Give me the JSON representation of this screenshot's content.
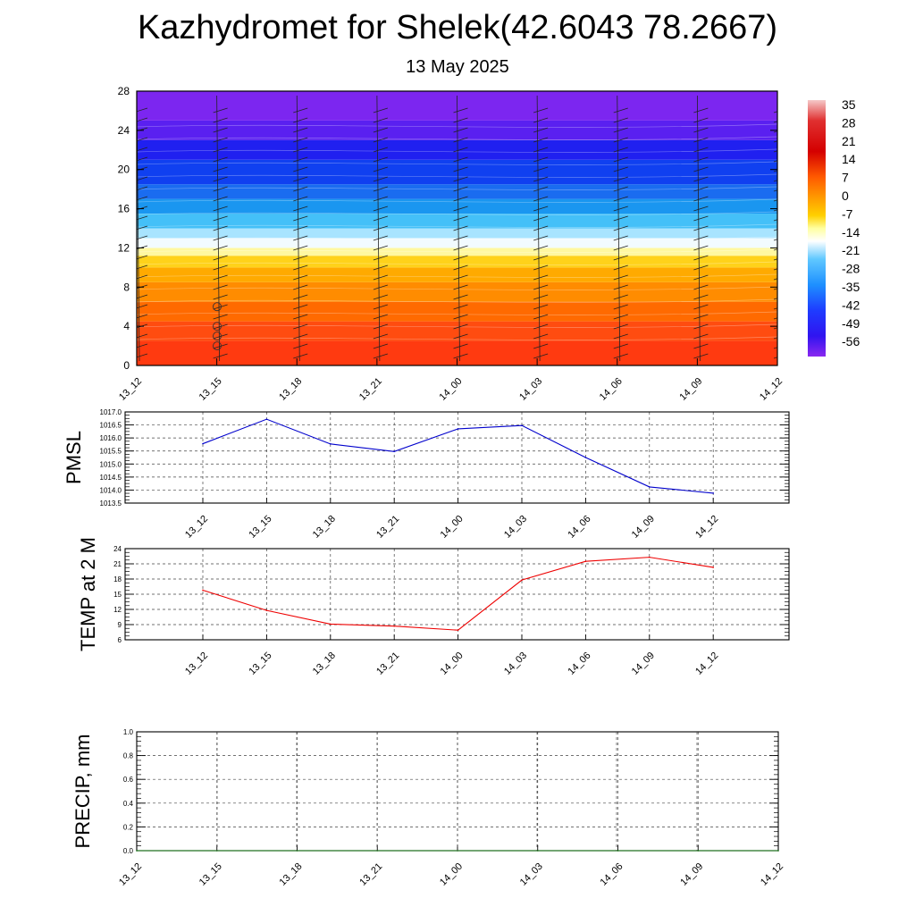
{
  "header": {
    "title": "Kazhydromet for Shelek(42.6043 78.2667)",
    "subtitle": "13 May 2025"
  },
  "chart_data": [
    {
      "type": "heatmap",
      "name": "temperature-profile",
      "x_ticks": [
        "13_12",
        "13_15",
        "13_18",
        "13_21",
        "14_00",
        "14_03",
        "14_06",
        "14_09",
        "14_12"
      ],
      "y_ticks": [
        0,
        4,
        8,
        12,
        16,
        20,
        24,
        28
      ],
      "ylim": [
        0,
        28
      ],
      "colorbar": {
        "labels": [
          "35",
          "28",
          "21",
          "14",
          "7",
          "0",
          "-7",
          "-14",
          "-21",
          "-28",
          "-35",
          "-42",
          "-49",
          "-56"
        ],
        "stops": [
          {
            "offset": 0.0,
            "color": "#f5c8c8"
          },
          {
            "offset": 0.08,
            "color": "#e03030"
          },
          {
            "offset": 0.2,
            "color": "#d40000"
          },
          {
            "offset": 0.3,
            "color": "#ff5a00"
          },
          {
            "offset": 0.38,
            "color": "#ff9a00"
          },
          {
            "offset": 0.45,
            "color": "#ffd000"
          },
          {
            "offset": 0.5,
            "color": "#ffffa0"
          },
          {
            "offset": 0.55,
            "color": "#ffffff"
          },
          {
            "offset": 0.62,
            "color": "#60c8ff"
          },
          {
            "offset": 0.72,
            "color": "#1e90ff"
          },
          {
            "offset": 0.82,
            "color": "#1e3cff"
          },
          {
            "offset": 0.92,
            "color": "#3014f0"
          },
          {
            "offset": 1.0,
            "color": "#8a28f0"
          }
        ]
      },
      "field_bands": [
        {
          "from": 0,
          "to": 2.5,
          "color": "#ff3a10"
        },
        {
          "from": 2.5,
          "to": 4.5,
          "color": "#ff4c10"
        },
        {
          "from": 4.5,
          "to": 6.5,
          "color": "#ff6a00"
        },
        {
          "from": 6.5,
          "to": 8.5,
          "color": "#ff8c00"
        },
        {
          "from": 8.5,
          "to": 10,
          "color": "#ffaa00"
        },
        {
          "from": 10,
          "to": 11.2,
          "color": "#ffd21a"
        },
        {
          "from": 11.2,
          "to": 12,
          "color": "#fff8a0"
        },
        {
          "from": 12,
          "to": 13,
          "color": "#f2fbff"
        },
        {
          "from": 13,
          "to": 14,
          "color": "#a8e4ff"
        },
        {
          "from": 14,
          "to": 15.5,
          "color": "#44c0f8"
        },
        {
          "from": 15.5,
          "to": 17,
          "color": "#1a96f0"
        },
        {
          "from": 17,
          "to": 18.5,
          "color": "#1a6cf0"
        },
        {
          "from": 18.5,
          "to": 21,
          "color": "#1040f0"
        },
        {
          "from": 21,
          "to": 23,
          "color": "#2020f0"
        },
        {
          "from": 23,
          "to": 25,
          "color": "#5a20f0"
        },
        {
          "from": 25,
          "to": 28,
          "color": "#7c26f0"
        }
      ]
    },
    {
      "type": "line",
      "name": "pmsl",
      "ylabel": "PMSL",
      "x": [
        "13_12",
        "13_15",
        "13_18",
        "13_21",
        "14_00",
        "14_03",
        "14_06",
        "14_09",
        "14_12"
      ],
      "y_ticks": [
        "1017.0",
        "1016.5",
        "1016.0",
        "1015.5",
        "1015.0",
        "1014.5",
        "1014.0",
        "1013.5"
      ],
      "ylim": [
        1013.5,
        1017.0
      ],
      "values": [
        1015.78,
        1016.72,
        1015.77,
        1015.48,
        1016.35,
        1016.48,
        1015.25,
        1014.12,
        1013.88
      ],
      "color": "#0000cc"
    },
    {
      "type": "line",
      "name": "temp-2m",
      "ylabel": "TEMP at 2 M",
      "x": [
        "13_12",
        "13_15",
        "13_18",
        "13_21",
        "14_00",
        "14_03",
        "14_06",
        "14_09",
        "14_12"
      ],
      "y_ticks": [
        "24",
        "21",
        "18",
        "15",
        "12",
        "9",
        "6"
      ],
      "ylim": [
        6,
        24
      ],
      "values": [
        15.8,
        11.8,
        9.1,
        8.7,
        7.9,
        17.8,
        21.5,
        22.3,
        20.3
      ],
      "color": "#ee0000"
    },
    {
      "type": "line",
      "name": "precip",
      "ylabel": "PRECIP, mm",
      "x_ticks": [
        "13_12",
        "13_15",
        "13_18",
        "13_21",
        "14_00",
        "14_03",
        "14_06",
        "14_09",
        "14_12"
      ],
      "y_ticks": [
        "1.0",
        "0.8",
        "0.6",
        "0.4",
        "0.2",
        "0.0"
      ],
      "ylim": [
        0,
        1
      ],
      "values": [
        0,
        0,
        0,
        0,
        0,
        0,
        0,
        0,
        0
      ],
      "color": "#006600"
    }
  ]
}
